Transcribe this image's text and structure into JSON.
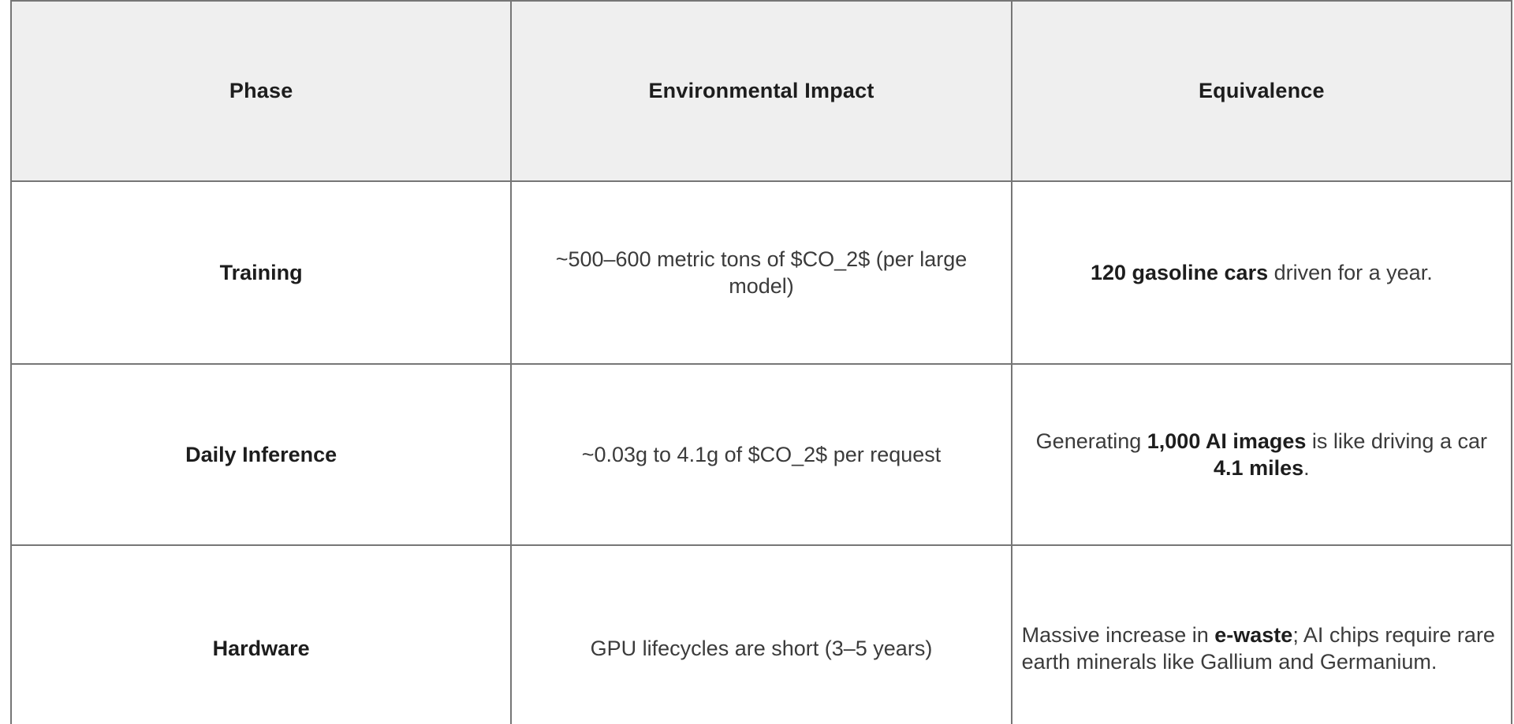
{
  "colors": {
    "header_bg": "#efefef",
    "border": "#767676",
    "text": "#3b3b3b",
    "strong_text": "#1d1d1d"
  },
  "table": {
    "headers": [
      {
        "label": "Phase"
      },
      {
        "label": "Environmental Impact"
      },
      {
        "label": "Equivalence"
      }
    ],
    "rows": [
      {
        "phase": "Training",
        "impact": "~500–600 metric tons of $CO_2$ (per large model)",
        "equivalence": [
          {
            "text": "120 gasoline cars",
            "bold": true
          },
          {
            "text": " driven for a year.",
            "bold": false
          }
        ]
      },
      {
        "phase": "Daily Inference",
        "impact": "~0.03g to 4.1g of $CO_2$ per request",
        "equivalence": [
          {
            "text": "Generating ",
            "bold": false
          },
          {
            "text": "1,000 AI images",
            "bold": true
          },
          {
            "text": " is like driving a car ",
            "bold": false
          },
          {
            "text": "4.1 miles",
            "bold": true
          },
          {
            "text": ".",
            "bold": false
          }
        ]
      },
      {
        "phase": "Hardware",
        "impact": "GPU lifecycles are short (3–5 years)",
        "equivalence": [
          {
            "text": "Massive increase in ",
            "bold": false
          },
          {
            "text": "e-waste",
            "bold": true
          },
          {
            "text": "; AI chips require rare earth minerals like Gallium and Germanium.",
            "bold": false
          }
        ]
      }
    ]
  }
}
